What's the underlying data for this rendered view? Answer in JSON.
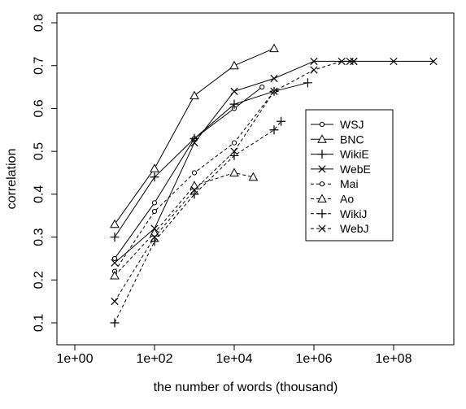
{
  "chart_data": {
    "type": "line",
    "xlabel": "the number of words (thousand)",
    "ylabel": "correlation",
    "xscale": "log10",
    "xlim": [
      1,
      1000000000
    ],
    "ylim": [
      0.1,
      0.8
    ],
    "xticks": [
      "1e+00",
      "1e+02",
      "1e+04",
      "1e+06",
      "1e+08"
    ],
    "yticks": [
      "0.1",
      "0.2",
      "0.3",
      "0.4",
      "0.5",
      "0.6",
      "0.7",
      "0.8"
    ],
    "grid": false,
    "legend_position": "right",
    "series": [
      {
        "name": "WSJ",
        "line": "solid",
        "marker": "circle",
        "x": [
          10,
          100,
          1000,
          10000,
          50000
        ],
        "y": [
          0.25,
          0.38,
          0.53,
          0.6,
          0.65
        ]
      },
      {
        "name": "BNC",
        "line": "solid",
        "marker": "triangle",
        "x": [
          10,
          100,
          1000,
          10000,
          100000
        ],
        "y": [
          0.33,
          0.46,
          0.63,
          0.7,
          0.74
        ]
      },
      {
        "name": "WikiE",
        "line": "solid",
        "marker": "plus",
        "x": [
          10,
          100,
          1000,
          10000,
          100000,
          700000
        ],
        "y": [
          0.3,
          0.44,
          0.53,
          0.61,
          0.64,
          0.66
        ]
      },
      {
        "name": "WebE",
        "line": "solid",
        "marker": "cross",
        "x": [
          10,
          100,
          1000,
          10000,
          100000,
          1000000,
          10000000,
          100000000,
          1000000000
        ],
        "y": [
          0.24,
          0.32,
          0.52,
          0.64,
          0.67,
          0.71,
          0.71,
          0.71,
          0.71
        ]
      },
      {
        "name": "Mai",
        "line": "dashed",
        "marker": "circle",
        "x": [
          10,
          100,
          1000,
          10000,
          100000
        ],
        "y": [
          0.22,
          0.36,
          0.45,
          0.52,
          0.64
        ]
      },
      {
        "name": "Ao",
        "line": "dashed",
        "marker": "triangle",
        "x": [
          10,
          100,
          1000,
          10000,
          30000
        ],
        "y": [
          0.21,
          0.31,
          0.42,
          0.45,
          0.44
        ]
      },
      {
        "name": "WikiJ",
        "line": "dashed",
        "marker": "plus",
        "x": [
          10,
          100,
          1000,
          10000,
          100000,
          150000
        ],
        "y": [
          0.1,
          0.29,
          0.4,
          0.49,
          0.55,
          0.57
        ]
      },
      {
        "name": "WebJ",
        "line": "dashed",
        "marker": "cross",
        "x": [
          10,
          100,
          1000,
          10000,
          100000,
          1000000,
          5000000,
          8000000,
          10000000
        ],
        "y": [
          0.15,
          0.3,
          0.41,
          0.5,
          0.64,
          0.69,
          0.71,
          0.71,
          0.71
        ]
      }
    ]
  }
}
